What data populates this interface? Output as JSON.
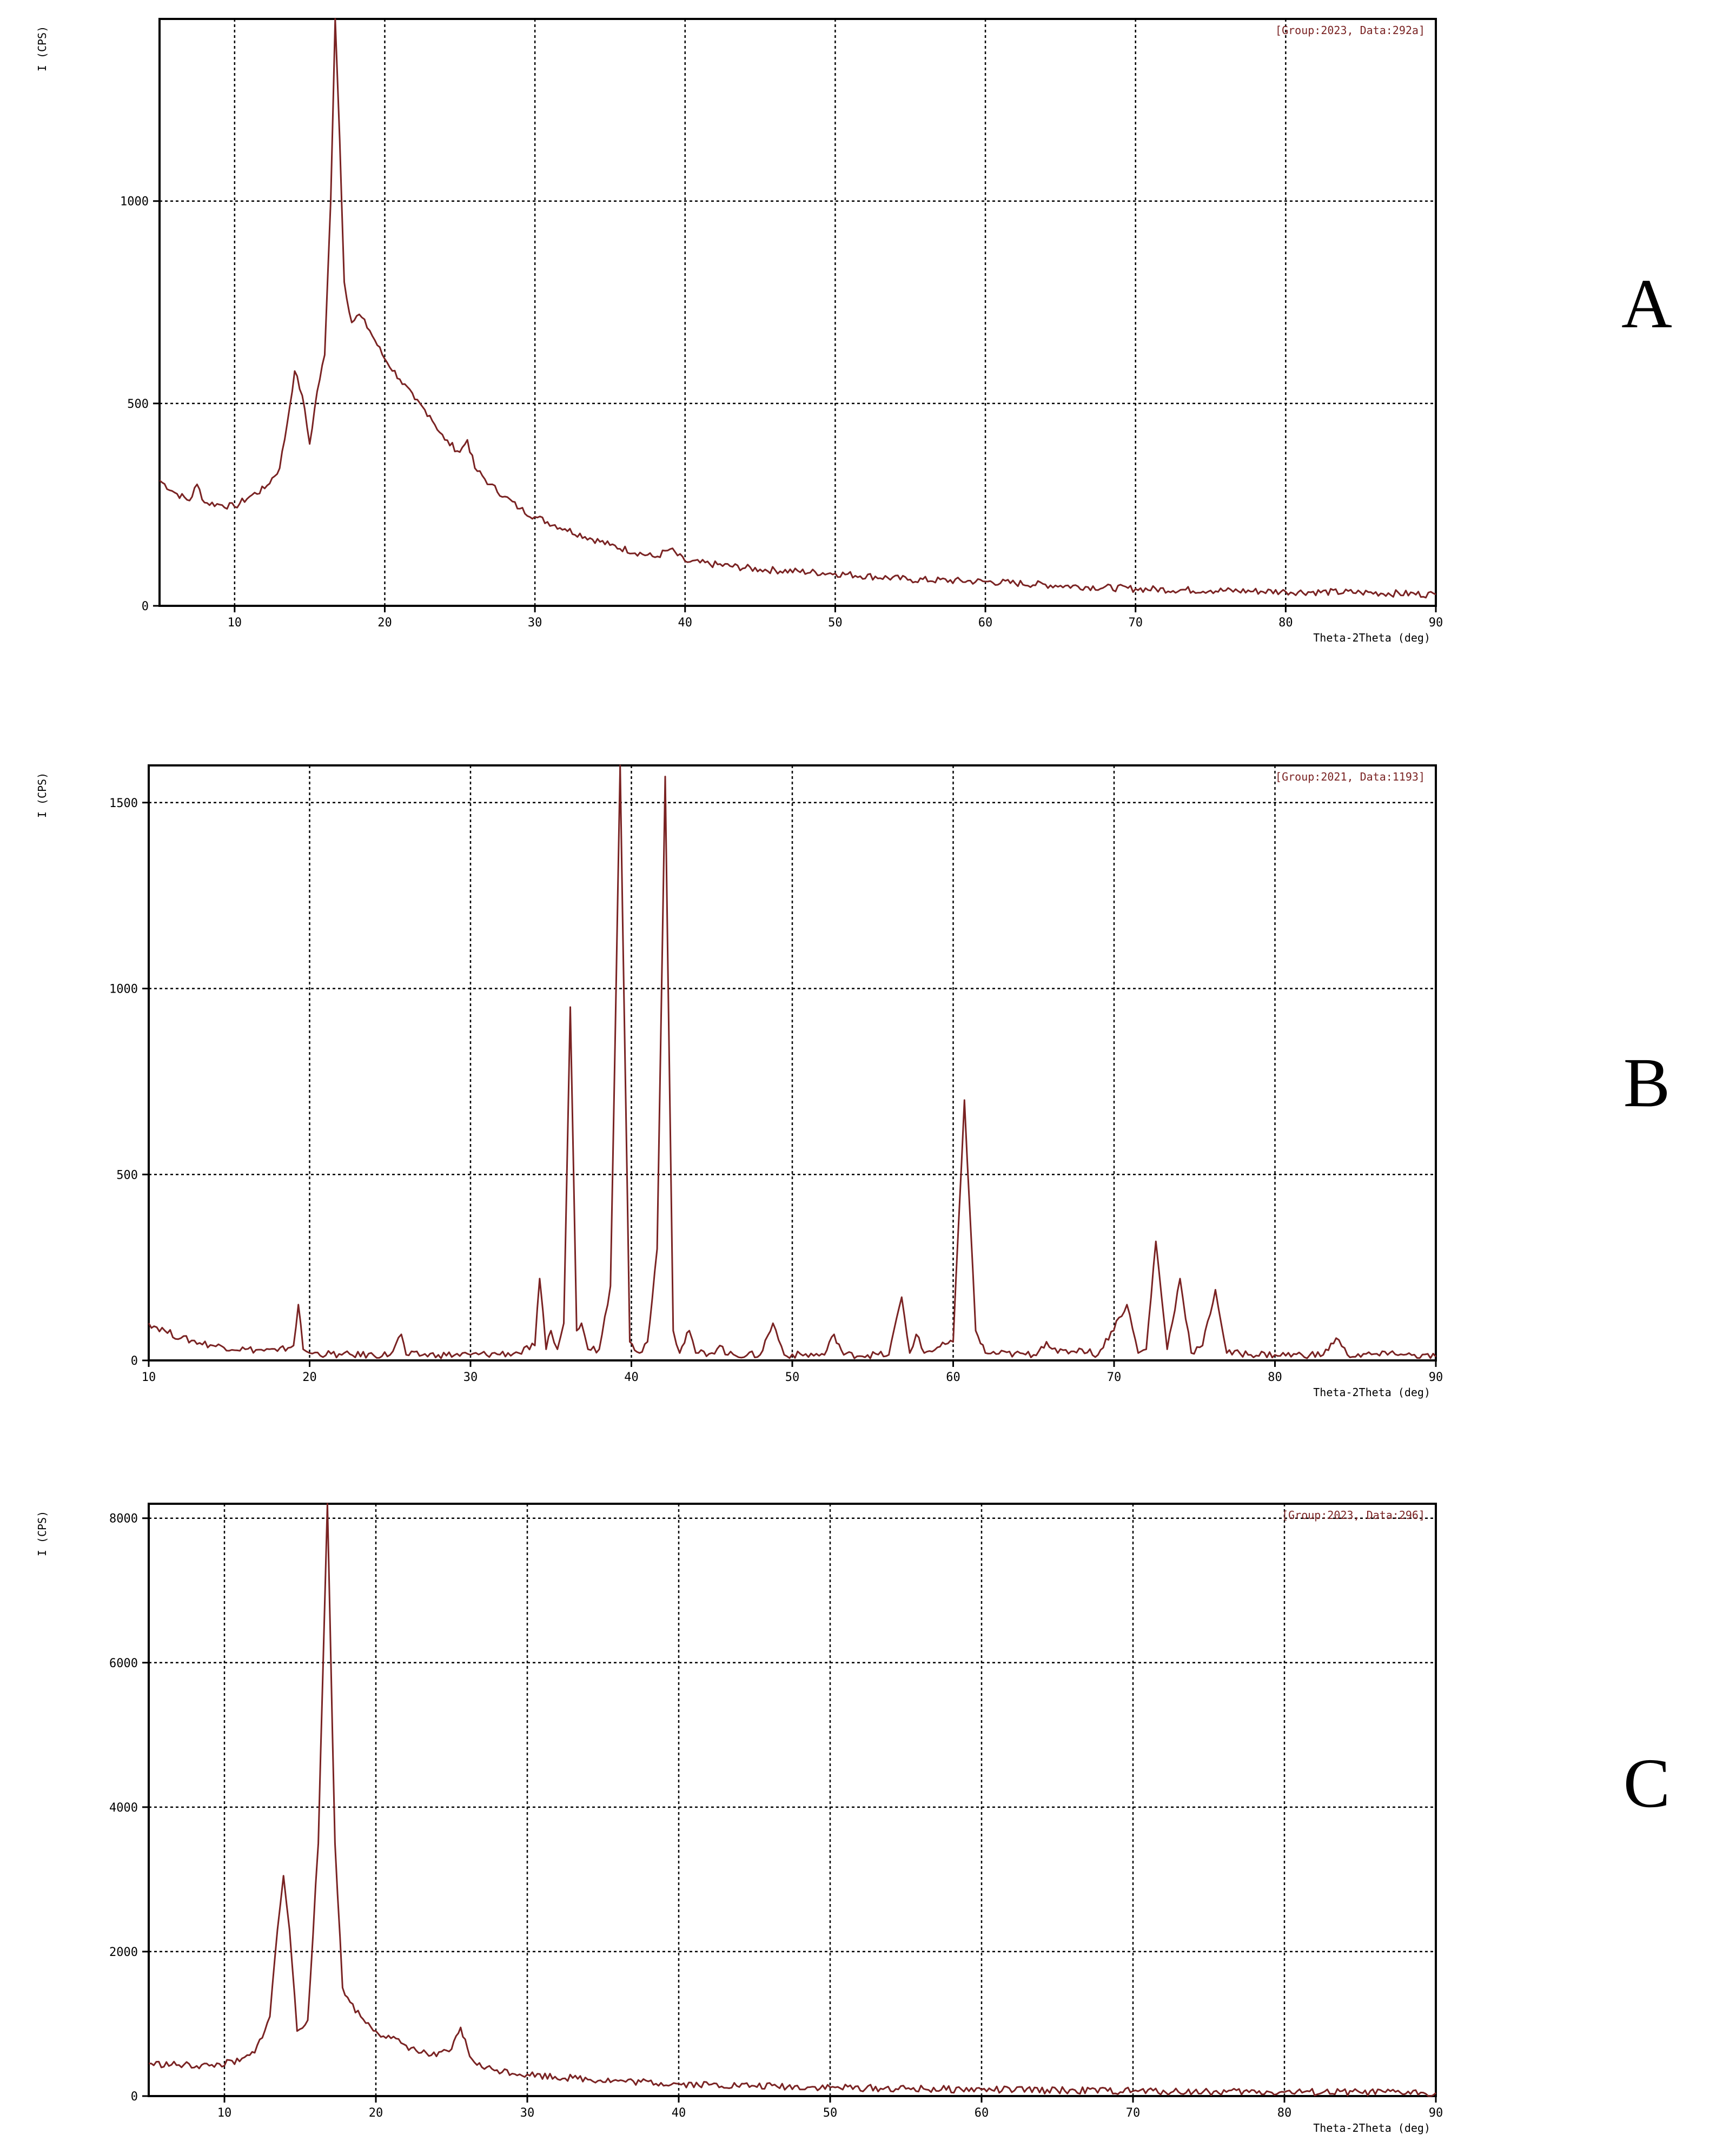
{
  "figure": {
    "panel_labels": [
      "A",
      "B",
      "C"
    ]
  },
  "colors": {
    "curve": "#7a2323",
    "axes": "#000000",
    "grid": "#000000"
  },
  "chart_data": [
    {
      "type": "line",
      "panel": "A",
      "title": "",
      "info_label": "[Group:2023, Data:292a]",
      "xlabel": "Theta-2Theta (deg)",
      "ylabel": "I (CPS)",
      "xlim": [
        5,
        90
      ],
      "ylim": [
        0,
        1450
      ],
      "xticks": [
        10,
        20,
        30,
        40,
        50,
        60,
        70,
        80,
        90
      ],
      "yticks": [
        0,
        500,
        1000
      ],
      "grid": true,
      "series": [
        {
          "x": [
            5,
            6,
            7,
            7.5,
            8,
            9,
            10,
            11,
            12,
            13,
            13.5,
            14,
            14.5,
            15,
            15.5,
            16,
            16.4,
            16.7,
            17,
            17.3,
            17.8,
            18.3,
            19,
            20,
            21,
            22,
            23,
            24,
            25,
            25.5,
            26,
            27,
            28,
            29,
            30,
            32,
            35,
            38,
            39,
            40,
            45,
            50,
            55,
            60,
            65,
            70,
            75,
            80,
            85,
            90
          ],
          "y": [
            310,
            280,
            260,
            300,
            255,
            250,
            245,
            270,
            290,
            340,
            450,
            580,
            520,
            400,
            530,
            620,
            1000,
            1460,
            1150,
            800,
            700,
            720,
            680,
            610,
            560,
            510,
            470,
            410,
            380,
            410,
            340,
            300,
            270,
            240,
            220,
            190,
            150,
            120,
            140,
            110,
            90,
            80,
            65,
            60,
            50,
            42,
            38,
            35,
            33,
            28
          ]
        }
      ]
    },
    {
      "type": "line",
      "panel": "B",
      "title": "",
      "info_label": "[Group:2021, Data:1193]",
      "xlabel": "Theta-2Theta (deg)",
      "ylabel": "I (CPS)",
      "xlim": [
        10,
        90
      ],
      "ylim": [
        0,
        1600
      ],
      "xticks": [
        10,
        20,
        30,
        40,
        50,
        60,
        70,
        80,
        90
      ],
      "yticks": [
        0,
        500,
        1000,
        1500
      ],
      "grid": true,
      "series": [
        {
          "x": [
            10,
            11,
            12,
            14,
            16,
            18,
            19,
            19.3,
            19.6,
            20,
            22,
            25,
            25.7,
            26,
            28,
            30,
            33,
            34,
            34.3,
            34.7,
            35,
            35.4,
            35.8,
            36.2,
            36.6,
            36.9,
            37.3,
            38,
            38.7,
            39.3,
            39.9,
            40.5,
            41,
            41.6,
            42.1,
            42.6,
            43,
            43.6,
            44,
            45,
            45.5,
            46,
            48,
            48.8,
            49.5,
            52,
            52.6,
            53.2,
            56,
            56.8,
            57.3,
            57.7,
            58.2,
            60,
            60.7,
            61.4,
            62,
            65,
            65.8,
            66.5,
            68,
            69,
            70.8,
            71.5,
            72,
            72.6,
            73.3,
            74.1,
            74.8,
            75.5,
            76.3,
            77,
            80,
            83,
            83.8,
            84.5,
            87,
            87.3,
            88,
            90
          ],
          "y": [
            100,
            80,
            60,
            40,
            30,
            25,
            40,
            150,
            30,
            20,
            15,
            15,
            70,
            15,
            15,
            15,
            20,
            40,
            220,
            30,
            80,
            30,
            100,
            950,
            80,
            100,
            30,
            30,
            200,
            1600,
            50,
            20,
            50,
            300,
            1570,
            80,
            20,
            80,
            20,
            20,
            40,
            15,
            15,
            100,
            15,
            15,
            70,
            15,
            15,
            170,
            20,
            70,
            20,
            50,
            700,
            80,
            20,
            15,
            50,
            20,
            30,
            15,
            150,
            20,
            30,
            320,
            30,
            220,
            20,
            40,
            190,
            20,
            15,
            15,
            60,
            15,
            15,
            25,
            15,
            10
          ]
        }
      ]
    },
    {
      "type": "line",
      "panel": "C",
      "title": "",
      "info_label": "[Group:2023, Data:296]",
      "xlabel": "Theta-2Theta (deg)",
      "ylabel": "I (CPS)",
      "xlim": [
        5,
        90
      ],
      "ylim": [
        0,
        8200
      ],
      "xticks": [
        10,
        20,
        30,
        40,
        50,
        60,
        70,
        80,
        90
      ],
      "yticks": [
        0,
        2000,
        4000,
        6000,
        8000
      ],
      "grid": true,
      "series": [
        {
          "x": [
            5,
            7,
            9,
            11,
            12,
            13,
            13.5,
            13.9,
            14.3,
            14.8,
            15.5,
            16.2,
            16.8,
            17.3,
            17.8,
            18.3,
            19,
            20,
            21,
            22,
            23,
            24,
            25,
            25.6,
            26.2,
            27,
            28,
            30,
            33,
            36,
            40,
            45,
            50,
            55,
            60,
            65,
            70,
            75,
            80,
            85,
            90
          ],
          "y": [
            450,
            430,
            420,
            480,
            600,
            1100,
            2300,
            3050,
            2300,
            900,
            1050,
            3500,
            8200,
            3500,
            1500,
            1300,
            1100,
            900,
            800,
            700,
            600,
            550,
            650,
            950,
            550,
            400,
            360,
            300,
            250,
            210,
            170,
            140,
            120,
            100,
            90,
            80,
            70,
            60,
            55,
            50,
            45
          ]
        }
      ]
    }
  ]
}
